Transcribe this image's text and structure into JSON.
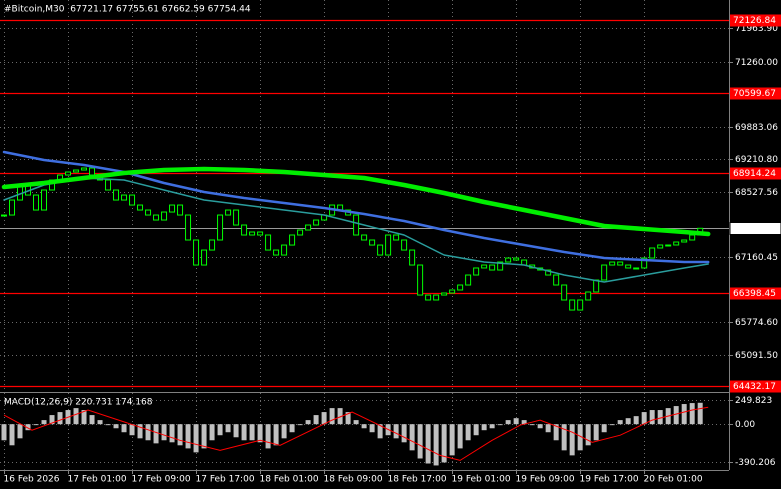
{
  "chart_data": [
    {
      "type": "candlestick",
      "title": "#Bitcoin,M30  67721.17 67755.61 67662.59 67754.44",
      "xlim": [
        -0.5,
        90.6
      ],
      "xticks": [
        {
          "value": 0,
          "label": "16 Feb 2026"
        },
        {
          "value": 8,
          "label": "17 Feb 01:00"
        },
        {
          "value": 16,
          "label": "17 Feb 09:00"
        },
        {
          "value": 24,
          "label": "17 Feb 17:00"
        },
        {
          "value": 32,
          "label": "18 Feb 01:00"
        },
        {
          "value": 40,
          "label": "18 Feb 09:00"
        },
        {
          "value": 48,
          "label": "18 Feb 17:00"
        },
        {
          "value": 56,
          "label": "19 Feb 01:00"
        },
        {
          "value": 64,
          "label": "19 Feb 09:00"
        },
        {
          "value": 72,
          "label": "19 Feb 17:00"
        },
        {
          "value": 80,
          "label": "20 Feb 01:00"
        }
      ],
      "ylim": [
        64313,
        72553
      ],
      "yticks": [
        {
          "value": 71963.9,
          "label": "71963.90"
        },
        {
          "value": 71260,
          "label": "71260.00"
        },
        69883.06,
        {
          "value": 69210.8,
          "label": "69210.80"
        },
        68527.56,
        67160.45,
        {
          "value": 65774.6,
          "label": "65774.60"
        },
        {
          "value": 65091.5,
          "label": "65091.50"
        }
      ],
      "grid": true,
      "closes": {
        "color": "#00ff00",
        "values": [
          68033,
          68348,
          68664,
          68453,
          68138,
          68559,
          68769,
          68874,
          68937,
          68979,
          69021,
          68874,
          68769,
          68559,
          68348,
          68453,
          68243,
          68138,
          68033,
          67928,
          68096,
          68243,
          68033,
          67508,
          66982,
          67297,
          67508,
          68033,
          68138,
          67823,
          67613,
          67676,
          67613,
          67297,
          67192,
          67402,
          67613,
          67718,
          67823,
          67928,
          68033,
          68243,
          68138,
          68033,
          67613,
          67508,
          67402,
          67192,
          67613,
          67508,
          67297,
          66982,
          66351,
          66247,
          66351,
          66394,
          66457,
          66562,
          66772,
          66920,
          66982,
          66877,
          67045,
          67129,
          67087,
          66982,
          66920,
          66877,
          66772,
          66562,
          66247,
          66036,
          66247,
          66415,
          66667,
          66982,
          67045,
          66982,
          66920,
          66920,
          67129,
          67340,
          67403,
          67403,
          67466,
          67508,
          67613,
          67754
        ]
      },
      "series": [
        {
          "color": "#3f6fe0",
          "line_width": 2.5,
          "x": [
            0,
            5,
            10,
            15,
            20,
            25,
            30,
            35,
            40,
            45,
            50,
            55,
            60,
            65,
            70,
            75,
            80,
            85,
            88
          ],
          "values": [
            69357,
            69189,
            69084,
            68937,
            68706,
            68517,
            68391,
            68285,
            68180,
            68054,
            67907,
            67718,
            67550,
            67403,
            67255,
            67129,
            67087,
            67045,
            67045
          ]
        },
        {
          "color": "#2a9d9d",
          "line_width": 1.5,
          "x": [
            0,
            5,
            10,
            15,
            20,
            25,
            30,
            35,
            40,
            45,
            50,
            55,
            60,
            65,
            70,
            75,
            80,
            85,
            88
          ],
          "values": [
            68348,
            68664,
            68811,
            68769,
            68559,
            68348,
            68243,
            68138,
            68033,
            67823,
            67613,
            67192,
            67045,
            66982,
            66772,
            66625,
            66772,
            66920,
            67003
          ]
        },
        {
          "color": "#00ee00",
          "line_width": 4.5,
          "x": [
            0,
            5,
            10,
            15,
            20,
            25,
            30,
            35,
            40,
            45,
            50,
            55,
            60,
            65,
            70,
            75,
            80,
            85,
            88
          ],
          "values": [
            68622,
            68706,
            68811,
            68916,
            68979,
            69000,
            68979,
            68937,
            68874,
            68811,
            68664,
            68496,
            68306,
            68138,
            67970,
            67802,
            67739,
            67676,
            67634
          ]
        }
      ],
      "levels": {
        "color": "#ff0000",
        "values": [
          72126.84,
          70599.67,
          68914.24,
          66398.45,
          64432.17
        ]
      },
      "last_price": 67754.44
    },
    {
      "type": "macd",
      "title": "MACD(12,26,9) 220.731 174.168",
      "ylim": [
        -473,
        322
      ],
      "yticks": [
        249.823,
        {
          "value": 0,
          "label": "0.00"
        },
        -390.206
      ],
      "histogram": {
        "color": "#c0c0c0",
        "values": [
          -166,
          -218,
          -146,
          -62,
          -10,
          42,
          94,
          125,
          146,
          166,
          146,
          94,
          42,
          -10,
          -42,
          -83,
          -114,
          -146,
          -166,
          -198,
          -166,
          -187,
          -218,
          -250,
          -291,
          -250,
          -166,
          -114,
          -83,
          -135,
          -166,
          -166,
          -187,
          -250,
          -218,
          -146,
          -83,
          -10,
          42,
          94,
          125,
          166,
          166,
          125,
          42,
          -42,
          -83,
          -146,
          -114,
          -146,
          -187,
          -270,
          -354,
          -406,
          -426,
          -395,
          -322,
          -250,
          -166,
          -114,
          -62,
          -42,
          -10,
          42,
          62,
          42,
          -10,
          -42,
          -83,
          -166,
          -270,
          -322,
          -270,
          -218,
          -166,
          -83,
          -10,
          42,
          62,
          83,
          125,
          146,
          146,
          166,
          187,
          208,
          218,
          221
        ]
      },
      "signal": {
        "color": "#ff0000",
        "x": [
          0,
          3.5,
          10.5,
          22,
          27,
          32,
          34.5,
          41,
          43.5,
          49.5,
          54.5,
          57,
          61,
          64.5,
          67,
          71,
          73.5,
          77,
          81,
          86,
          88
        ],
        "values": [
          94,
          -62,
          146,
          -166,
          -270,
          -166,
          -218,
          42,
          125,
          -114,
          -322,
          -374,
          -166,
          -10,
          42,
          -83,
          -187,
          -114,
          42,
          146,
          174
        ]
      }
    }
  ]
}
